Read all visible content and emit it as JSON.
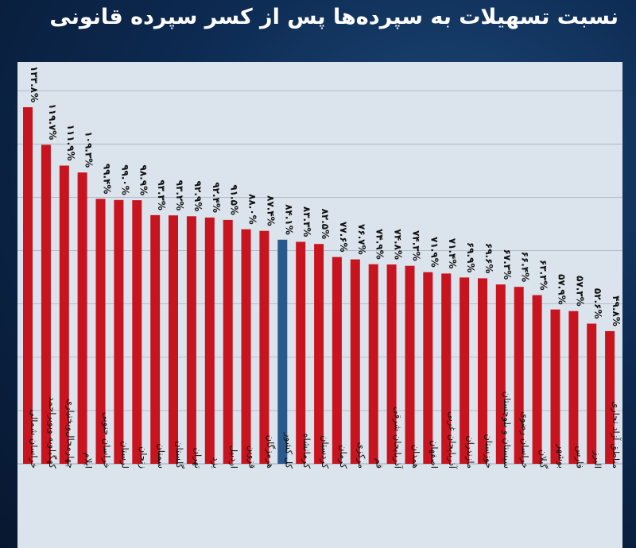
{
  "title": "نسبت تسهیلات به سپرده‌ها پس از کسر سپرده قانونی",
  "colors": {
    "bar": "#c8141e",
    "highlight": "#2a5a8c",
    "plot_bg": "#dbe3ec",
    "grid": "#aab6c4",
    "axis_text": "#111111"
  },
  "chart_data": {
    "type": "bar",
    "title": "نسبت تسهیلات به سپرده‌ها پس از کسر سپرده قانونی",
    "xlabel": "",
    "ylabel": "",
    "ylim": [
      0,
      140
    ],
    "grid": true,
    "highlight_category": "کل کشور",
    "categories": [
      "خراسان شمالی",
      "کهگیلویه وبویراحمد",
      "چهارمحال‌وبختیاری",
      "ایلام",
      "خراسان جنوبی",
      "لرستان",
      "زنجان",
      "سمنان",
      "گلستان",
      "تهران",
      "یزد",
      "اردبیل",
      "قزوین",
      "هرمزگان",
      "کل کشور",
      "کرمانشاه",
      "کردستان",
      "کرمان",
      "مرکزی",
      "قم",
      "آذربایجان شرقی",
      "همدان",
      "اصفهان",
      "آذربایجان غربی",
      "مازندران",
      "خوزستان",
      "سیستان و بلوچستان",
      "خراسان رضوی",
      "گیلان",
      "بوشهر",
      "فارس",
      "البرز",
      "مناطق آزاد تجاری"
    ],
    "values": [
      133.8,
      119.7,
      111.9,
      109.3,
      99.4,
      99.0,
      98.9,
      93.3,
      93.2,
      92.9,
      92.4,
      91.5,
      88.0,
      87.4,
      84.1,
      83.3,
      82.5,
      77.6,
      76.7,
      74.9,
      74.8,
      74.3,
      71.9,
      71.4,
      69.9,
      69.6,
      67.3,
      66.4,
      63.3,
      57.9,
      57.3,
      52.6,
      49.8
    ],
    "labels": [
      "۱۳۳.۸%",
      "۱۱۹.۷%",
      "۱۱۱.۹%",
      "۱۰۹.۳%",
      "۹۹.۴%",
      "۹۹.۰%",
      "۹۸.۹%",
      "۹۳.۳%",
      "۹۳.۲%",
      "۹۲.۹%",
      "۹۲.۴%",
      "۹۱.۵%",
      "۸۸.۰%",
      "۸۷.۴%",
      "۸۴.۱%",
      "۸۳.۳%",
      "۸۲.۵%",
      "۷۷.۶%",
      "۷۶.۷%",
      "۷۴.۹%",
      "۷۴.۸%",
      "۷۴.۳%",
      "۷۱.۹%",
      "۷۱.۴%",
      "۶۹.۹%",
      "۶۹.۶%",
      "۶۷.۳%",
      "۶۶.۴%",
      "۶۳.۳%",
      "۵۷.۹%",
      "۵۷.۳%",
      "۵۲.۶%",
      "۴۹.۸%"
    ]
  }
}
